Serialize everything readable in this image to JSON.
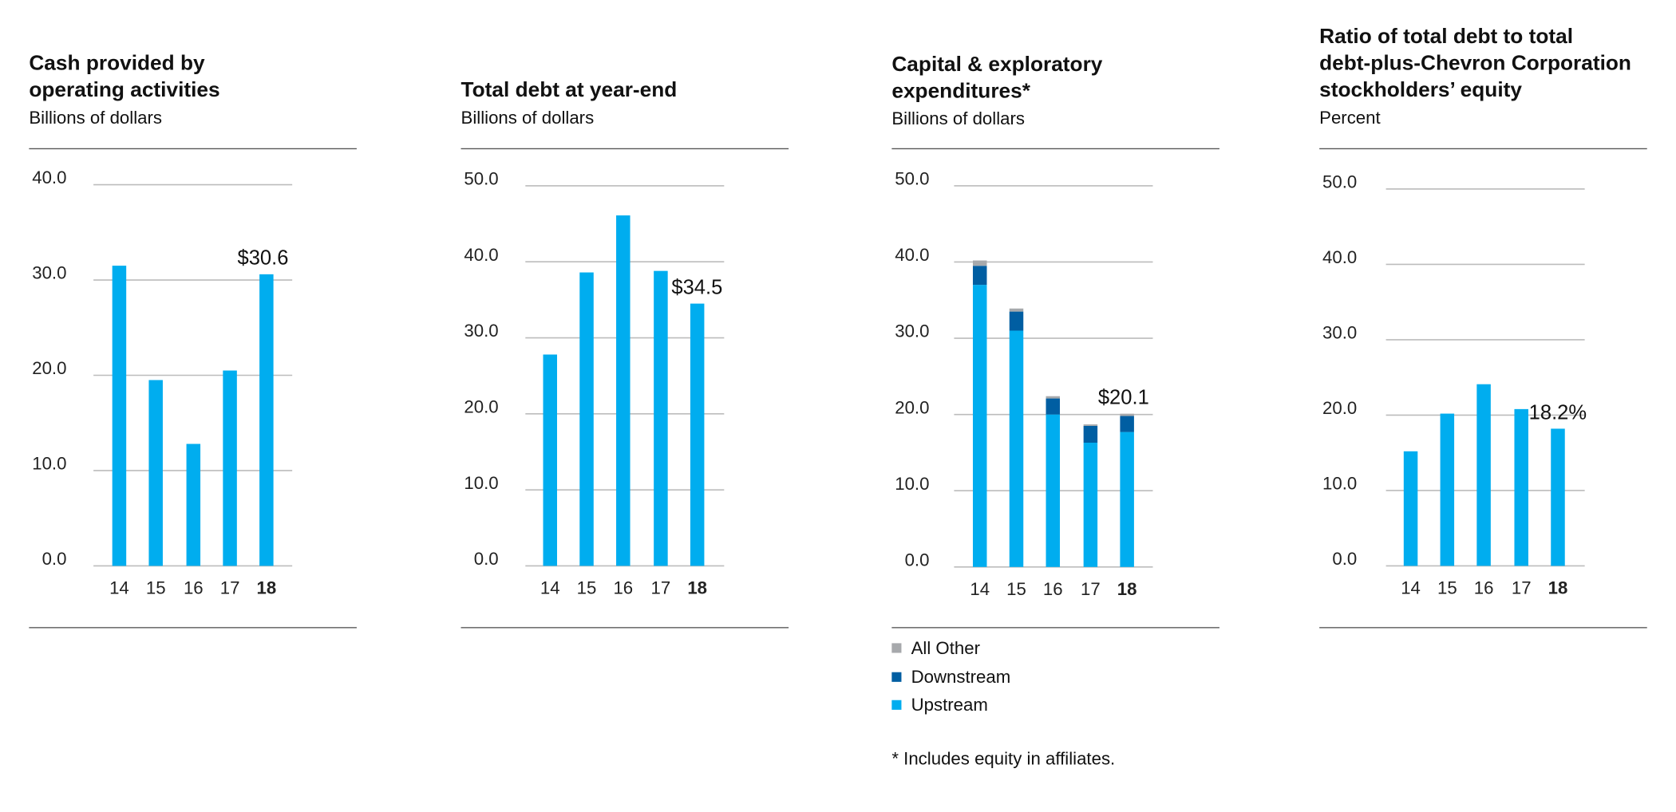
{
  "colors": {
    "upstream": "#00adef",
    "downstream": "#005ea2",
    "other": "#a7a9ac",
    "grid": "#bcbcbc"
  },
  "chart_data": [
    {
      "type": "bar",
      "title": "Cash provided by operating activities",
      "subtitle": "Billions of dollars",
      "categories": [
        "14",
        "15",
        "16",
        "17",
        "18"
      ],
      "values": [
        31.5,
        19.5,
        12.8,
        20.5,
        30.6
      ],
      "ylim": [
        0,
        40
      ],
      "yticks": [
        "0.0",
        "10.0",
        "20.0",
        "30.0",
        "40.0"
      ],
      "callout": "$30.6",
      "highlight": "18",
      "grid": true
    },
    {
      "type": "bar",
      "title": "Total debt at year-end",
      "subtitle": "Billions of dollars",
      "categories": [
        "14",
        "15",
        "16",
        "17",
        "18"
      ],
      "values": [
        27.8,
        38.6,
        46.1,
        38.8,
        34.5
      ],
      "ylim": [
        0,
        50
      ],
      "yticks": [
        "0.0",
        "10.0",
        "20.0",
        "30.0",
        "40.0",
        "50.0"
      ],
      "callout": "$34.5",
      "highlight": "18",
      "grid": true
    },
    {
      "type": "bar",
      "stacked": true,
      "title": "Capital & exploratory expenditures*",
      "subtitle": "Billions of dollars",
      "categories": [
        "14",
        "15",
        "16",
        "17",
        "18"
      ],
      "series": [
        {
          "name": "Upstream",
          "key": "upstream",
          "values": [
            37.0,
            31.0,
            20.0,
            16.3,
            17.7
          ]
        },
        {
          "name": "Downstream",
          "key": "downstream",
          "values": [
            2.5,
            2.5,
            2.1,
            2.2,
            2.1
          ]
        },
        {
          "name": "All Other",
          "key": "other",
          "values": [
            0.7,
            0.4,
            0.3,
            0.2,
            0.3
          ]
        }
      ],
      "ylim": [
        0,
        50
      ],
      "yticks": [
        "0.0",
        "10.0",
        "20.0",
        "30.0",
        "40.0",
        "50.0"
      ],
      "callout": "$20.1",
      "highlight": "18",
      "legend": [
        "All Other",
        "Downstream",
        "Upstream"
      ],
      "footnote": "* Includes equity in affiliates.",
      "grid": true
    },
    {
      "type": "bar",
      "title": "Ratio of total debt to total debt-plus-Chevron Corporation stockholders’ equity",
      "subtitle": "Percent",
      "categories": [
        "14",
        "15",
        "16",
        "17",
        "18"
      ],
      "values": [
        15.2,
        20.2,
        24.1,
        20.8,
        18.2
      ],
      "ylim": [
        0,
        50
      ],
      "yticks": [
        "0.0",
        "10.0",
        "20.0",
        "30.0",
        "40.0",
        "50.0"
      ],
      "callout": "18.2%",
      "highlight": "18",
      "grid": true
    }
  ],
  "titles": [
    [
      "Cash provided by",
      "operating activities"
    ],
    [
      "Total debt at year-end"
    ],
    [
      "Capital & exploratory",
      "expenditures*"
    ],
    [
      "Ratio of total debt to total",
      "debt-plus-Chevron Corporation",
      "stockholders’ equity"
    ]
  ]
}
